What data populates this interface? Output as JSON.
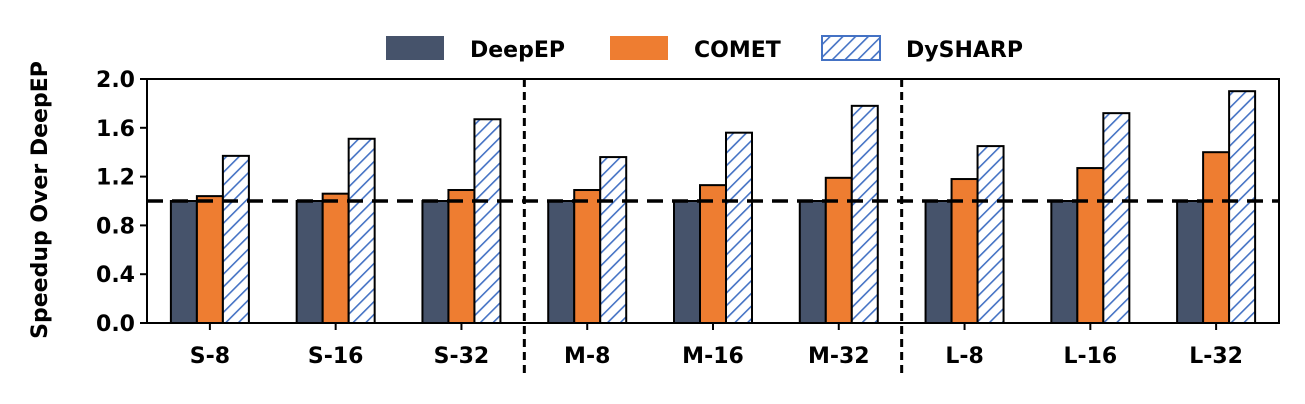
{
  "chart_data": {
    "type": "bar",
    "title": "",
    "xlabel": "",
    "ylabel": "Speedup Over DeepEP",
    "ylim": [
      0.0,
      2.0
    ],
    "yticks": [
      "0.0",
      "0.4",
      "0.8",
      "1.2",
      "1.6",
      "2.0"
    ],
    "ytick_values": [
      0.0,
      0.4,
      0.8,
      1.2,
      1.6,
      2.0
    ],
    "categories": [
      "S-8",
      "S-16",
      "S-32",
      "M-8",
      "M-16",
      "M-32",
      "L-8",
      "L-16",
      "L-32"
    ],
    "series": [
      {
        "name": "DeepEP",
        "color": "#46536b",
        "pattern": "solid",
        "values": [
          1.0,
          1.0,
          1.0,
          1.0,
          1.0,
          1.0,
          1.0,
          1.0,
          1.0
        ]
      },
      {
        "name": "COMET",
        "color": "#ee7d31",
        "pattern": "solid",
        "values": [
          1.04,
          1.06,
          1.09,
          1.09,
          1.13,
          1.19,
          1.18,
          1.27,
          1.4
        ]
      },
      {
        "name": "DySHARP",
        "color": "#4472c4",
        "pattern": "hatch",
        "values": [
          1.37,
          1.51,
          1.67,
          1.36,
          1.56,
          1.78,
          1.45,
          1.72,
          1.9
        ]
      }
    ],
    "reference_line": 1.0,
    "group_separators_after": [
      2,
      5
    ],
    "legend": "top-center",
    "grid": false
  }
}
